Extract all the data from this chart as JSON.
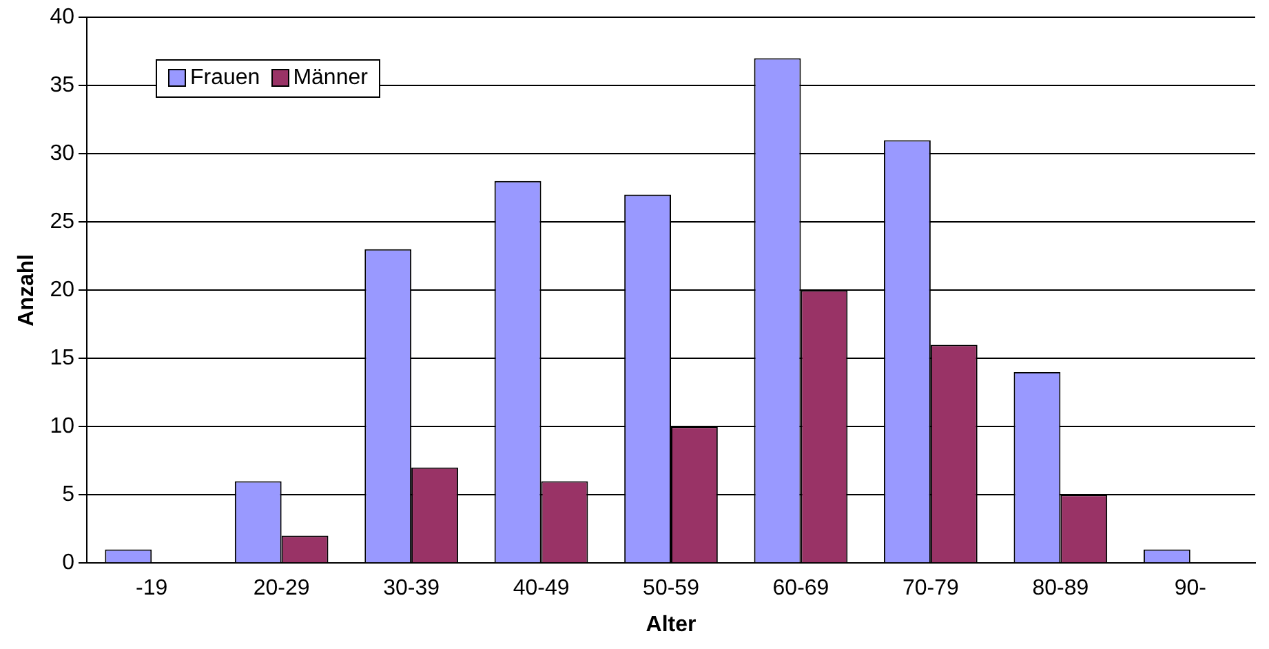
{
  "chart_data": {
    "type": "bar",
    "xlabel": "Alter",
    "ylabel": "Anzahl",
    "categories": [
      "-19",
      "20-29",
      "30-39",
      "40-49",
      "50-59",
      "60-69",
      "70-79",
      "80-89",
      "90-"
    ],
    "series": [
      {
        "name": "Frauen",
        "color": "#9999ff",
        "values": [
          1,
          6,
          23,
          28,
          27,
          37,
          31,
          14,
          1
        ]
      },
      {
        "name": "Männer",
        "color": "#993366",
        "values": [
          0,
          2,
          7,
          6,
          10,
          20,
          16,
          5,
          0
        ]
      }
    ],
    "ylim": [
      0,
      40
    ],
    "yticks": [
      0,
      5,
      10,
      15,
      20,
      25,
      30,
      35,
      40
    ],
    "grid": "y",
    "legend": "top left"
  }
}
